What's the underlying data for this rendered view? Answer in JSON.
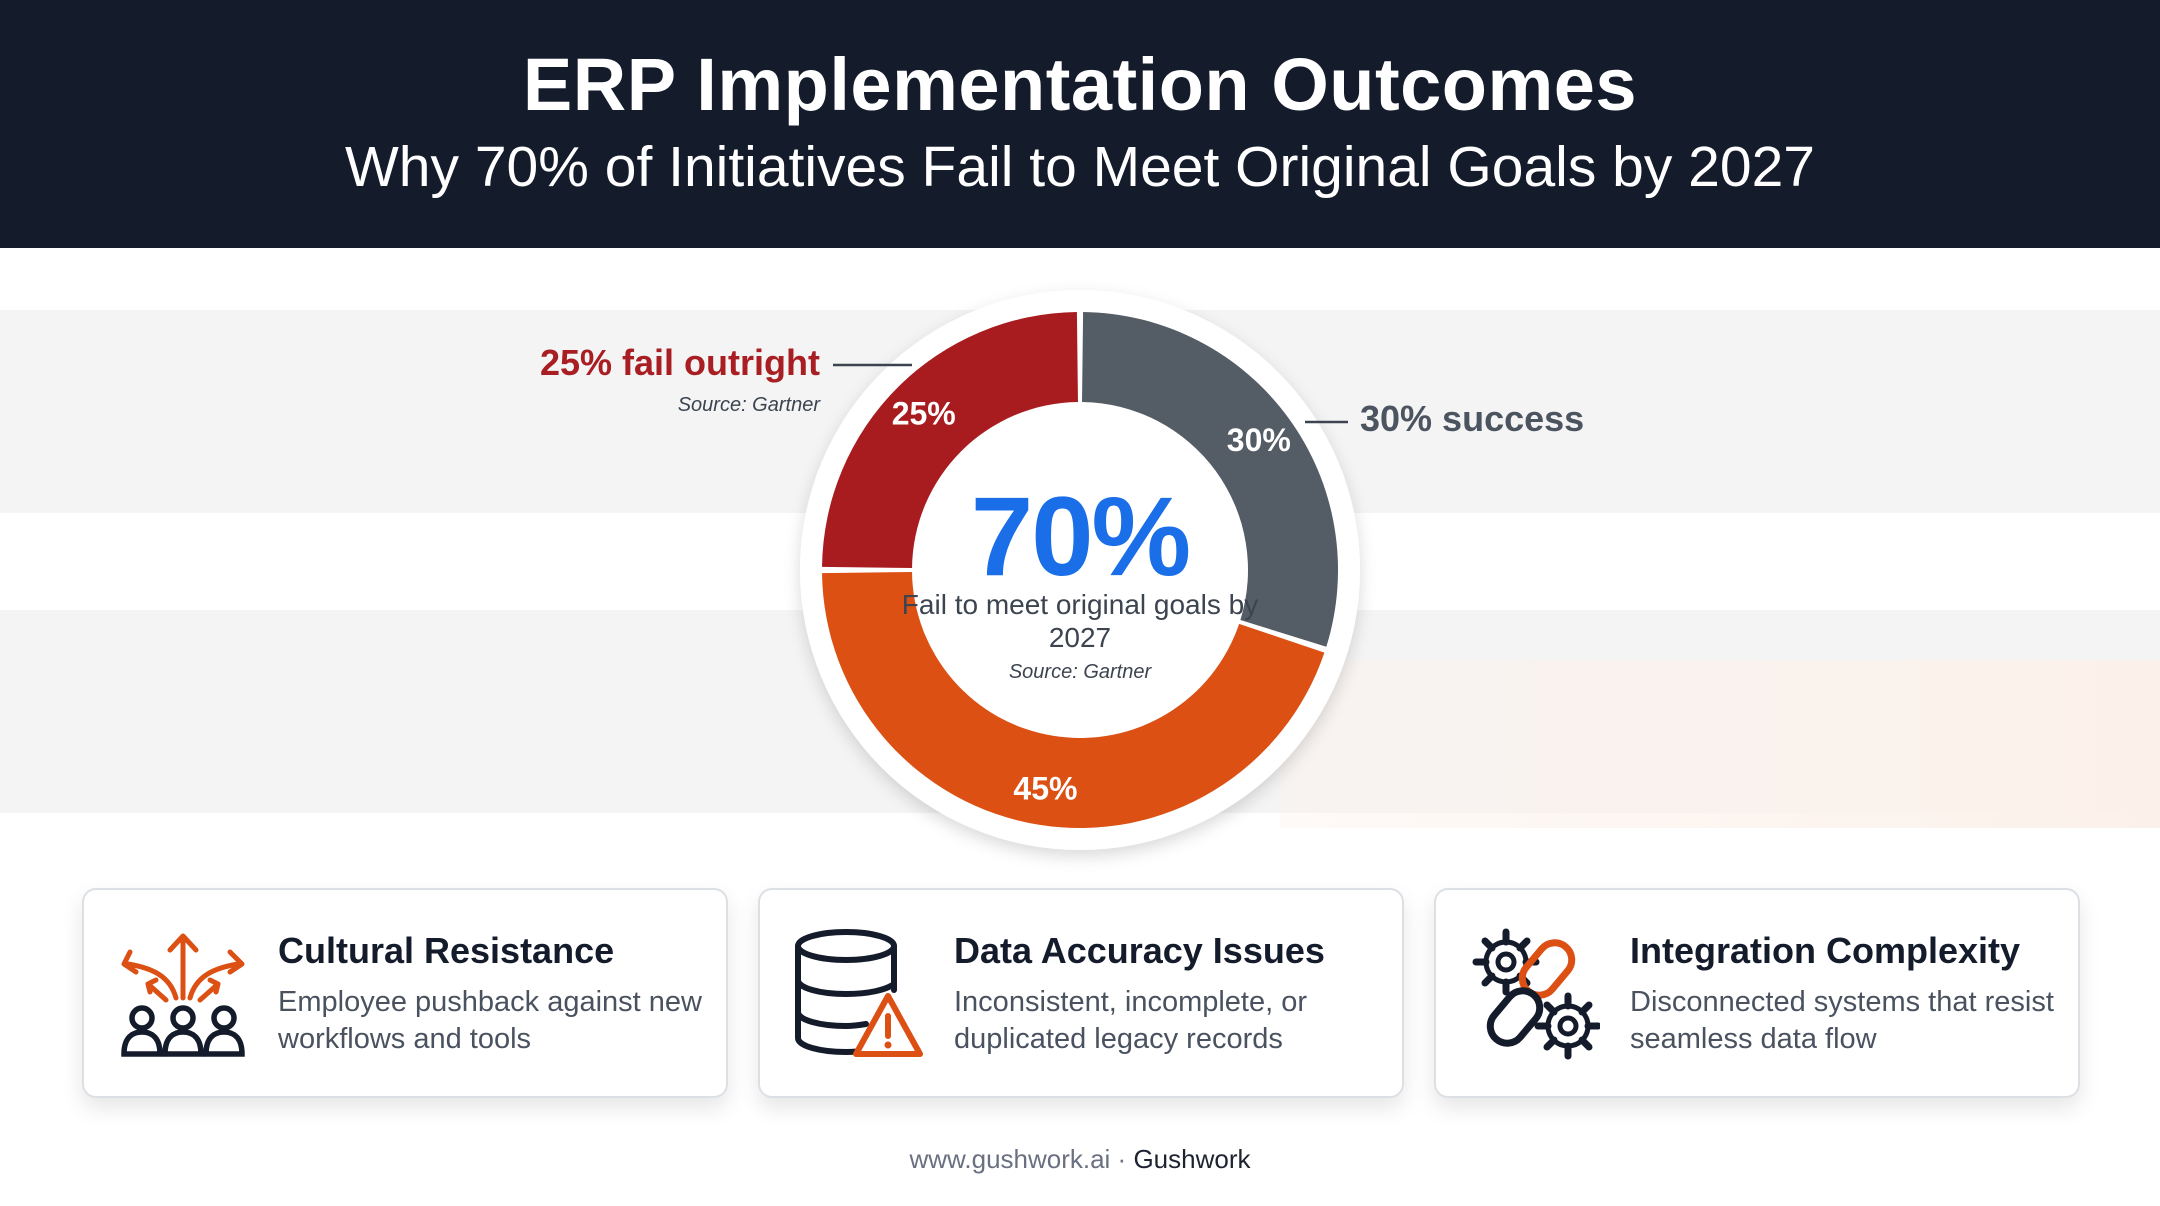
{
  "header": {
    "title": "ERP Implementation Outcomes",
    "subtitle": "Why 70% of Initiatives Fail to Meet Original Goals by 2027"
  },
  "chart_data": {
    "type": "pie",
    "title": "",
    "slices": [
      {
        "label": "30%",
        "value": 30,
        "color": "#545c66"
      },
      {
        "label": "45%",
        "value": 45,
        "color": "#dc5014"
      },
      {
        "label": "25%",
        "value": 25,
        "color": "#a81c20"
      }
    ],
    "center": {
      "value": "70%",
      "description": "Fail to meet original goals by 2027",
      "source": "Source: Gartner"
    },
    "callouts": {
      "fail": {
        "label": "25% fail outright",
        "source": "Source: Gartner"
      },
      "success": {
        "label": "30% success"
      }
    }
  },
  "cards": [
    {
      "title": "Cultural Resistance",
      "desc": "Employee pushback against new workflows and tools",
      "icon": "people-arrows-icon"
    },
    {
      "title": "Data Accuracy Issues",
      "desc": "Inconsistent, incomplete, or duplicated legacy records",
      "icon": "database-warning-icon"
    },
    {
      "title": "Integration Complexity",
      "desc": "Disconnected systems that resist seamless data flow",
      "icon": "gears-link-icon"
    }
  ],
  "colors": {
    "accent": "#1a6ee8",
    "orange": "#dc5014",
    "dark": "#141b2b"
  },
  "footer": {
    "url": "www.gushwork.ai · ",
    "brand": "Gushwork"
  }
}
